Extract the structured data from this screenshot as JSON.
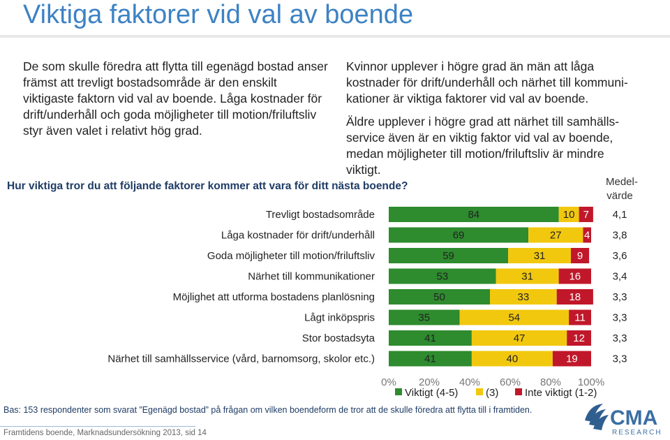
{
  "header": {
    "title": "Viktiga faktorer vid val av boende"
  },
  "intro": {
    "left": "De som skulle föredra att flytta till egenägd bostad anser främst att trevligt bostadsområde är den enskilt viktigaste faktorn vid val av boende. Låga kostnader för drift/underhåll och goda möjligheter till motion/friluftsliv styr även valet i relativt hög grad.",
    "right_p1": "Kvinnor upplever i högre grad än män att låga kostnader för drift/underhåll och närhet till kommuni-kationer är viktiga faktorer vid val av boende.",
    "right_p2": "Äldre upplever i högre grad att närhet till samhälls-service även är en viktig faktor vid val av boende, medan möjligheter till motion/friluftsliv är mindre viktigt."
  },
  "question": "Hur viktiga tror du att följande faktorer kommer att vara för ditt nästa boende?",
  "mean_header": "Medel-värde",
  "colors": {
    "important": "#2e8b2e",
    "neutral": "#f2c80f",
    "not_important": "#c0182a"
  },
  "chart_data": {
    "type": "bar",
    "orientation": "horizontal",
    "stacked": true,
    "categories": [
      "Trevligt bostadsområde",
      "Låga kostnader för drift/underhåll",
      "Goda möjligheter till motion/friluftsliv",
      "Närhet till kommunikationer",
      "Möjlighet att utforma bostadens planlösning",
      "Lågt inköpspris",
      "Stor bostadsyta",
      "Närhet till samhällsservice (vård, barnomsorg, skolor etc.)"
    ],
    "series": [
      {
        "name": "Viktigt (4-5)",
        "color": "#2e8b2e",
        "values": [
          84,
          69,
          59,
          53,
          50,
          35,
          41,
          41
        ]
      },
      {
        "name": "(3)",
        "color": "#f2c80f",
        "values": [
          10,
          27,
          31,
          31,
          33,
          54,
          47,
          40
        ]
      },
      {
        "name": "Inte viktigt (1-2)",
        "color": "#c0182a",
        "values": [
          7,
          4,
          9,
          16,
          18,
          11,
          12,
          19
        ]
      }
    ],
    "means": [
      "4,1",
      "3,8",
      "3,6",
      "3,4",
      "3,3",
      "3,3",
      "3,3",
      "3,3"
    ],
    "x_ticks": [
      "0%",
      "20%",
      "40%",
      "60%",
      "80%",
      "100%"
    ],
    "xlim": [
      0,
      100
    ],
    "legend_position": "bottom"
  },
  "footnote": "Bas: 153 respondenter som svarat ”Egenägd bostad” på frågan om vilken boendeform de tror att de skulle föredra att flytta till i framtiden.",
  "footer": "Framtidens boende, Marknadsundersökning 2013, sid 14",
  "logo": {
    "name": "CMA",
    "sub": "RESEARCH"
  }
}
